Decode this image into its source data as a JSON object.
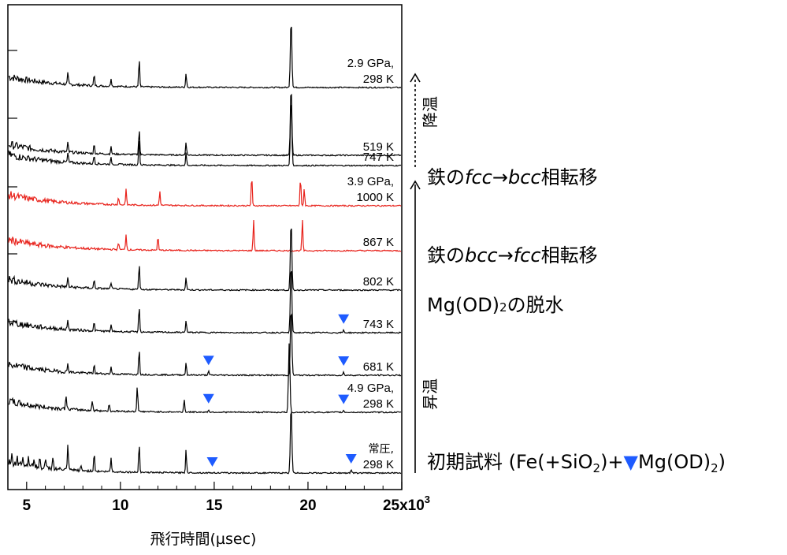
{
  "chart_data": {
    "type": "line",
    "xlabel": "飛行時間(µsec)",
    "xlim": [
      4000,
      25000
    ],
    "x_ticks": [
      5000,
      10000,
      15000,
      20000,
      25000
    ],
    "x_tick_labels": [
      "5",
      "10",
      "15",
      "20",
      "25x10"
    ],
    "x_tick_exp": "3",
    "colors": {
      "black": "#000000",
      "red": "#e8221b",
      "marker": "#1e5bff"
    },
    "series": [
      {
        "lines": [
          "2.9 GPa,",
          "298 K"
        ],
        "color": "black",
        "peaks": [
          [
            7200,
            0.35
          ],
          [
            8600,
            0.35
          ],
          [
            9500,
            0.25
          ],
          [
            11000,
            0.9
          ],
          [
            13500,
            0.45
          ],
          [
            19100,
            2.2
          ]
        ],
        "markers": []
      },
      {
        "lines": [
          "519 K"
        ],
        "color": "black",
        "peaks": [
          [
            7200,
            0.3
          ],
          [
            8600,
            0.3
          ],
          [
            9500,
            0.22
          ],
          [
            11000,
            0.85
          ],
          [
            13500,
            0.42
          ],
          [
            19100,
            2.2
          ]
        ],
        "markers": []
      },
      {
        "lines": [
          "747 K"
        ],
        "color": "black",
        "peaks": [
          [
            7200,
            0.3
          ],
          [
            8600,
            0.28
          ],
          [
            9500,
            0.2
          ],
          [
            11000,
            0.85
          ],
          [
            13500,
            0.4
          ],
          [
            19100,
            2.2
          ]
        ],
        "markers": []
      },
      {
        "lines": [
          "3.9 GPa,",
          "1000 K"
        ],
        "color": "red",
        "peaks": [
          [
            9900,
            0.25
          ],
          [
            10300,
            0.5
          ],
          [
            12100,
            0.45
          ],
          [
            17000,
            1.0
          ],
          [
            19600,
            0.92
          ],
          [
            19800,
            0.55
          ]
        ],
        "markers": []
      },
      {
        "lines": [
          "867 K"
        ],
        "color": "red",
        "peaks": [
          [
            9900,
            0.25
          ],
          [
            10300,
            0.5
          ],
          [
            12000,
            0.45
          ],
          [
            17100,
            1.0
          ],
          [
            19700,
            1.0
          ]
        ],
        "markers": []
      },
      {
        "lines": [
          "802 K"
        ],
        "color": "black",
        "peaks": [
          [
            7200,
            0.3
          ],
          [
            8600,
            0.28
          ],
          [
            9500,
            0.2
          ],
          [
            11000,
            0.85
          ],
          [
            13500,
            0.4
          ],
          [
            19100,
            2.2
          ]
        ],
        "markers": []
      },
      {
        "lines": [
          "743 K"
        ],
        "color": "black",
        "peaks": [
          [
            7200,
            0.3
          ],
          [
            8600,
            0.28
          ],
          [
            9500,
            0.2
          ],
          [
            11000,
            0.85
          ],
          [
            13500,
            0.4
          ],
          [
            19100,
            2.2
          ],
          [
            21900,
            0.08
          ]
        ],
        "markers": [
          21900
        ]
      },
      {
        "lines": [
          "681 K"
        ],
        "color": "black",
        "peaks": [
          [
            7200,
            0.3
          ],
          [
            8600,
            0.28
          ],
          [
            9500,
            0.22
          ],
          [
            11000,
            0.85
          ],
          [
            13500,
            0.4
          ],
          [
            14700,
            0.12
          ],
          [
            19100,
            2.2
          ],
          [
            21900,
            0.1
          ]
        ],
        "markers": [
          14700,
          21900
        ]
      },
      {
        "lines": [
          "4.9 GPa,",
          "298 K"
        ],
        "color": "black",
        "peaks": [
          [
            7100,
            0.45
          ],
          [
            8500,
            0.3
          ],
          [
            9400,
            0.22
          ],
          [
            10900,
            0.85
          ],
          [
            13400,
            0.42
          ],
          [
            14700,
            0.08
          ],
          [
            19000,
            2.2
          ],
          [
            21900,
            0.06
          ]
        ],
        "markers": [
          14700,
          21900
        ]
      },
      {
        "lines": [
          "常圧,",
          "298 K"
        ],
        "color": "black",
        "peaks": [
          [
            4200,
            0.2
          ],
          [
            4500,
            0.25
          ],
          [
            4800,
            0.3
          ],
          [
            5100,
            0.35
          ],
          [
            5400,
            0.3
          ],
          [
            5700,
            0.3
          ],
          [
            6000,
            0.25
          ],
          [
            6400,
            0.4
          ],
          [
            7200,
            0.8
          ],
          [
            7900,
            0.15
          ],
          [
            8600,
            0.6
          ],
          [
            9500,
            0.45
          ],
          [
            11000,
            0.95
          ],
          [
            13500,
            0.75
          ],
          [
            19100,
            2.2
          ],
          [
            22300,
            0.1
          ]
        ],
        "markers": [
          14900,
          22300
        ]
      }
    ]
  },
  "annotations": {
    "bcc_fcc_1": "鉄の",
    "bcc_fcc_2": "fcc",
    "bcc_fcc_3": "→",
    "bcc_fcc_4": "bcc",
    "bcc_fcc_5": "相転移",
    "fcc_bcc_1": "鉄の",
    "fcc_bcc_2": "bcc",
    "fcc_bcc_3": "→",
    "fcc_bcc_4": "fcc",
    "fcc_bcc_5": "相転移",
    "dehyd_1": "Mg(OD)",
    "dehyd_2": "2",
    "dehyd_3": "の脱水",
    "initial_1": "初期試料 (Fe(+SiO",
    "initial_2": "2",
    "initial_3": ")+",
    "initial_4": "Mg(OD)",
    "initial_5": "2",
    "initial_6": ")",
    "cooling": "降温",
    "heating": "昇温"
  }
}
